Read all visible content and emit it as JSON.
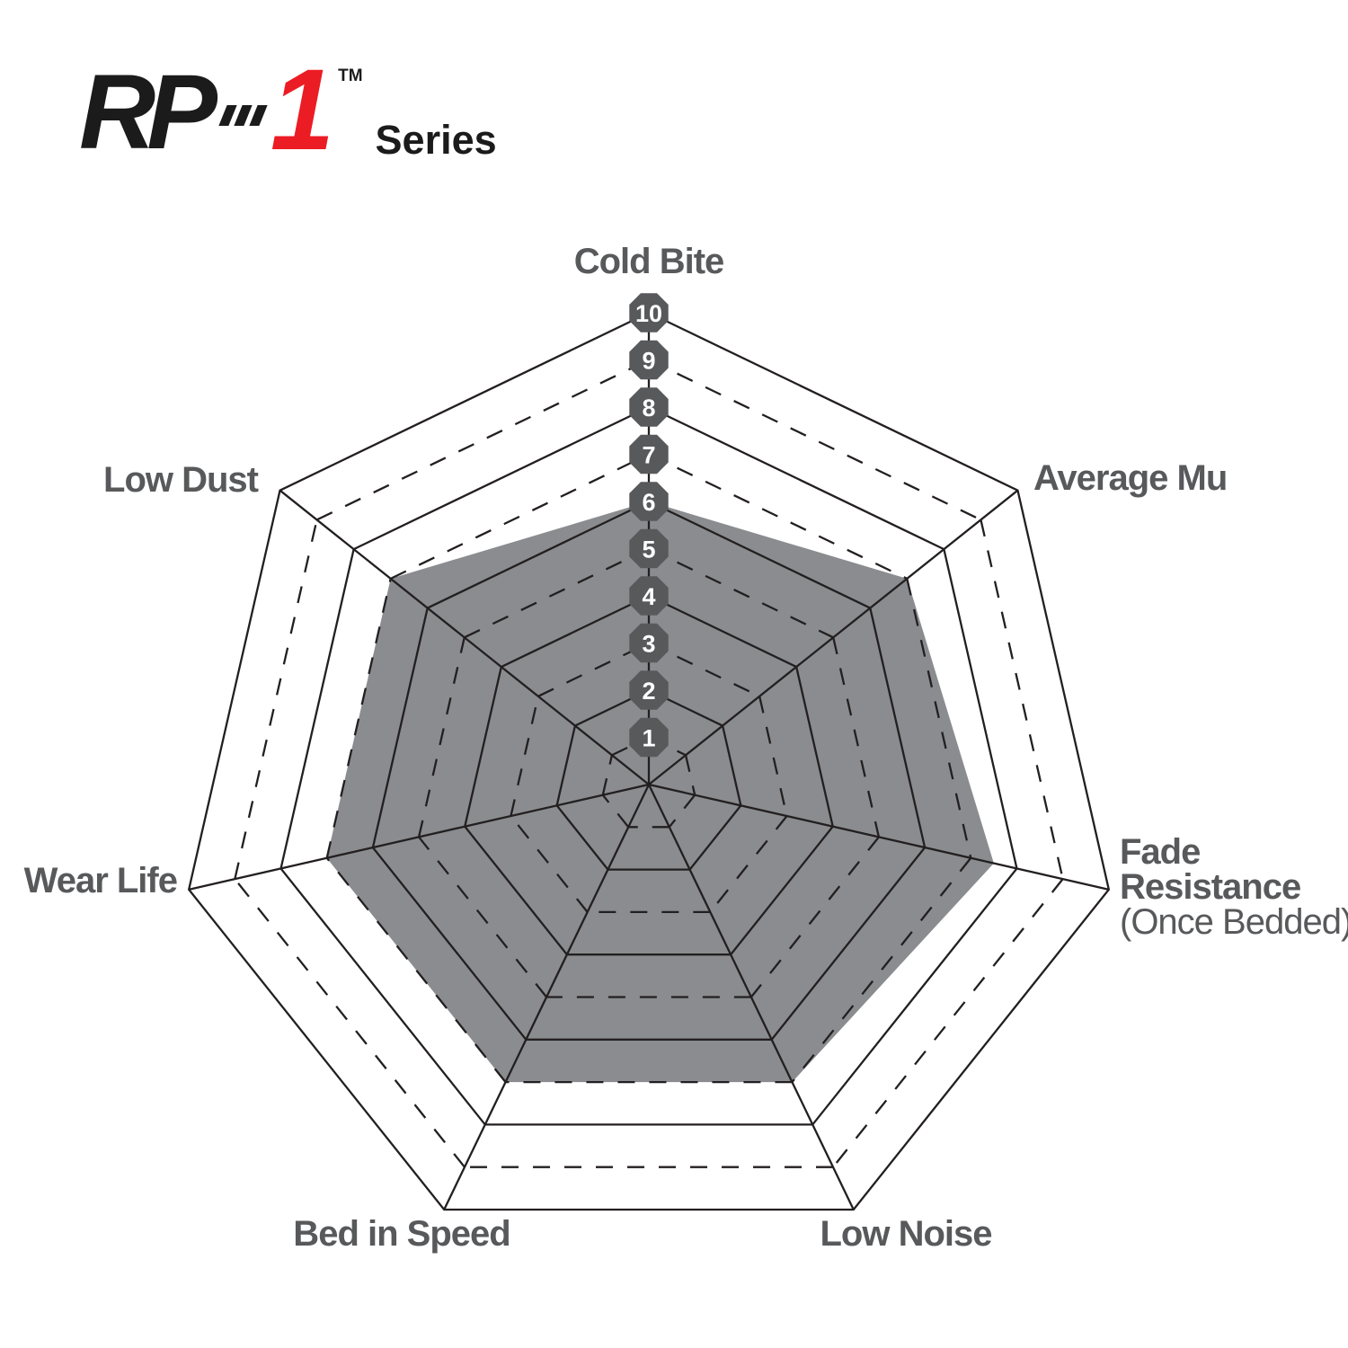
{
  "logo": {
    "brand": "RP",
    "number": "1",
    "trademark": "TM",
    "series": "Series"
  },
  "colors": {
    "logo_black": "#1B1B1B",
    "logo_red": "#EC1C24",
    "grid_line": "#231F20",
    "polygon_fill": "#8A8C8F",
    "tick_badge": "#58595B",
    "tick_number": "#FFFFFF",
    "axis_label": "#58595B"
  },
  "axis_labels": {
    "cold_bite": "Cold Bite",
    "average_mu": "Average Mu",
    "fade_line1": "Fade",
    "fade_line2": "Resistance",
    "fade_line3": "(Once Bedded)",
    "low_noise": "Low Noise",
    "bed_in_speed": "Bed in Speed",
    "wear_life": "Wear Life",
    "low_dust": "Low Dust"
  },
  "chart_data": {
    "type": "radar",
    "axes": [
      "Cold Bite",
      "Average Mu",
      "Fade Resistance (Once Bedded)",
      "Low Noise",
      "Bed in Speed",
      "Wear Life",
      "Low Dust"
    ],
    "values": [
      6,
      7,
      7.5,
      7,
      7,
      7,
      7
    ],
    "scale_min": 0,
    "scale_max": 10,
    "scale_ticks": [
      1,
      2,
      3,
      4,
      5,
      6,
      7,
      8,
      9,
      10
    ],
    "grid": {
      "shape": "heptagon",
      "even_rings": "solid",
      "odd_rings": "dashed",
      "spokes": "solid",
      "tick_marker": "octagon-badge",
      "tick_axis": "Cold Bite"
    },
    "legend": "none"
  }
}
